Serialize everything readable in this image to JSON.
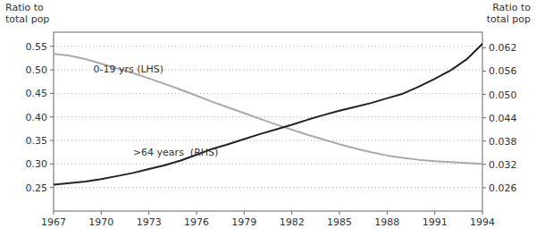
{
  "chart_data": {
    "type": "line",
    "x": [
      1967,
      1968,
      1969,
      1970,
      1971,
      1972,
      1973,
      1974,
      1975,
      1976,
      1977,
      1978,
      1979,
      1980,
      1981,
      1982,
      1983,
      1984,
      1985,
      1986,
      1987,
      1988,
      1989,
      1990,
      1991,
      1992,
      1993,
      1994
    ],
    "series": [
      {
        "color": "#aaaaaa",
        "values": [
          0.534,
          0.53,
          0.523,
          0.513,
          0.503,
          0.493,
          0.482,
          0.47,
          0.458,
          0.445,
          0.432,
          0.42,
          0.408,
          0.396,
          0.384,
          0.373,
          0.362,
          0.352,
          0.342,
          0.333,
          0.325,
          0.318,
          0.313,
          0.309,
          0.306,
          0.304,
          0.302,
          0.3
        ]
      },
      {
        "color": "#222222",
        "axis": "y2",
        "values": [
          0.0268,
          0.0272,
          0.0276,
          0.0282,
          0.029,
          0.0298,
          0.0308,
          0.0318,
          0.033,
          0.0345,
          0.036,
          0.0372,
          0.0385,
          0.0398,
          0.041,
          0.0422,
          0.0435,
          0.0447,
          0.0458,
          0.0468,
          0.0478,
          0.049,
          0.0502,
          0.052,
          0.054,
          0.0562,
          0.059,
          0.063
        ]
      }
    ],
    "xlim": [
      1967,
      1994
    ],
    "xticks": [
      1967,
      1970,
      1973,
      1976,
      1979,
      1982,
      1985,
      1988,
      1991,
      1994
    ],
    "ylim": [
      0.2,
      0.58
    ],
    "yticks": [
      0.25,
      {
        "value": 0.3,
        "label": "0.30"
      },
      0.35,
      {
        "value": 0.4,
        "label": "0.40"
      },
      0.45,
      {
        "value": 0.5,
        "label": "0.50"
      },
      0.55
    ],
    "y2lim": [
      0.02,
      0.066
    ],
    "y2ticks": [
      0.026,
      0.032,
      0.038,
      0.044,
      {
        "value": 0.05,
        "label": "0.050"
      },
      0.056,
      0.062
    ],
    "ylabel": [
      "Ratio to",
      "total pop"
    ],
    "y2label": [
      "Ratio to",
      "total pop"
    ],
    "annotations": [
      {
        "text": "0-19 yrs (LHS)",
        "x": 1969.5,
        "y": 0.495
      },
      {
        "text": ">64 years  (RHS)",
        "x": 1972.0,
        "y": 0.318
      }
    ],
    "grid": true
  }
}
